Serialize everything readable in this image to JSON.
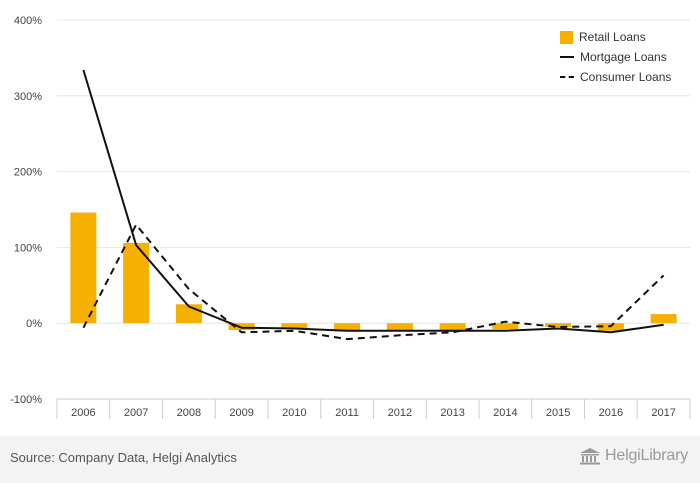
{
  "chart_data": {
    "type": "bar",
    "categories": [
      "2006",
      "2007",
      "2008",
      "2009",
      "2010",
      "2011",
      "2012",
      "2013",
      "2014",
      "2015",
      "2016",
      "2017"
    ],
    "y_ticks": [
      -100,
      0,
      100,
      200,
      300,
      400
    ],
    "y_tick_labels": [
      "-100%",
      "0%",
      "100%",
      "200%",
      "300%",
      "400%"
    ],
    "ylim": [
      -100,
      400
    ],
    "grid": true,
    "legend_position": "top-right",
    "series": [
      {
        "name": "Retail Loans",
        "kind": "bar",
        "color": "#F5B000",
        "values": [
          146,
          106,
          25,
          -9,
          -7,
          -11,
          -9,
          -9,
          -8,
          -5,
          -10,
          12
        ]
      },
      {
        "name": "Mortgage Loans",
        "kind": "line",
        "style": "solid",
        "color": "#111111",
        "values": [
          334,
          103,
          22,
          -6,
          -7,
          -10,
          -10,
          -10,
          -10,
          -7,
          -12,
          -2
        ]
      },
      {
        "name": "Consumer Loans",
        "kind": "line",
        "style": "dashed",
        "color": "#111111",
        "values": [
          -6,
          130,
          45,
          -12,
          -10,
          -21,
          -16,
          -12,
          2,
          -5,
          -4,
          63
        ]
      }
    ]
  },
  "footer": {
    "source": "Source: Company Data, Helgi Analytics",
    "brand": "HelgiLibrary"
  },
  "icons": {
    "brand_logo": "library-building-icon"
  }
}
